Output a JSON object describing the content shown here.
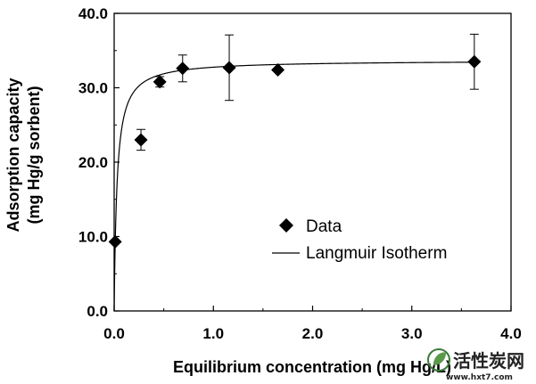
{
  "chart_data": {
    "type": "scatter",
    "xlabel": "Equilibrium concentration (mg Hg/L)",
    "ylabel_lines": [
      "Adsorption capacity",
      "(mg Hg/g sorbent)"
    ],
    "xlim": [
      0,
      4
    ],
    "ylim": [
      0,
      40
    ],
    "xticks": [
      "0.0",
      "1.0",
      "2.0",
      "3.0",
      "4.0"
    ],
    "yticks": [
      "0.0",
      "10.0",
      "20.0",
      "30.0",
      "40.0"
    ],
    "xtick_values": [
      0,
      1,
      2,
      3,
      4
    ],
    "ytick_values": [
      0,
      10,
      20,
      30,
      40
    ],
    "grid": false,
    "legend_position": "center-right",
    "series": [
      {
        "name": "Data",
        "kind": "scatter",
        "marker": "diamond",
        "color": "#000000",
        "points": [
          {
            "x": 0.01,
            "y": 9.3,
            "err": 0
          },
          {
            "x": 0.27,
            "y": 23.0,
            "err": 1.4
          },
          {
            "x": 0.46,
            "y": 30.8,
            "err": 0.7
          },
          {
            "x": 0.69,
            "y": 32.6,
            "err": 1.8
          },
          {
            "x": 1.16,
            "y": 32.7,
            "err": 4.4
          },
          {
            "x": 1.65,
            "y": 32.4,
            "err": 0
          },
          {
            "x": 3.63,
            "y": 33.5,
            "err": 3.7
          }
        ]
      },
      {
        "name": "Langmuir Isotherm",
        "kind": "line",
        "color": "#000000",
        "qmax": 33.7,
        "K": 35,
        "x_range": [
          0,
          3.65
        ]
      }
    ]
  },
  "watermark": {
    "brand": "活性炭网",
    "url": "www.hxt7.com"
  }
}
